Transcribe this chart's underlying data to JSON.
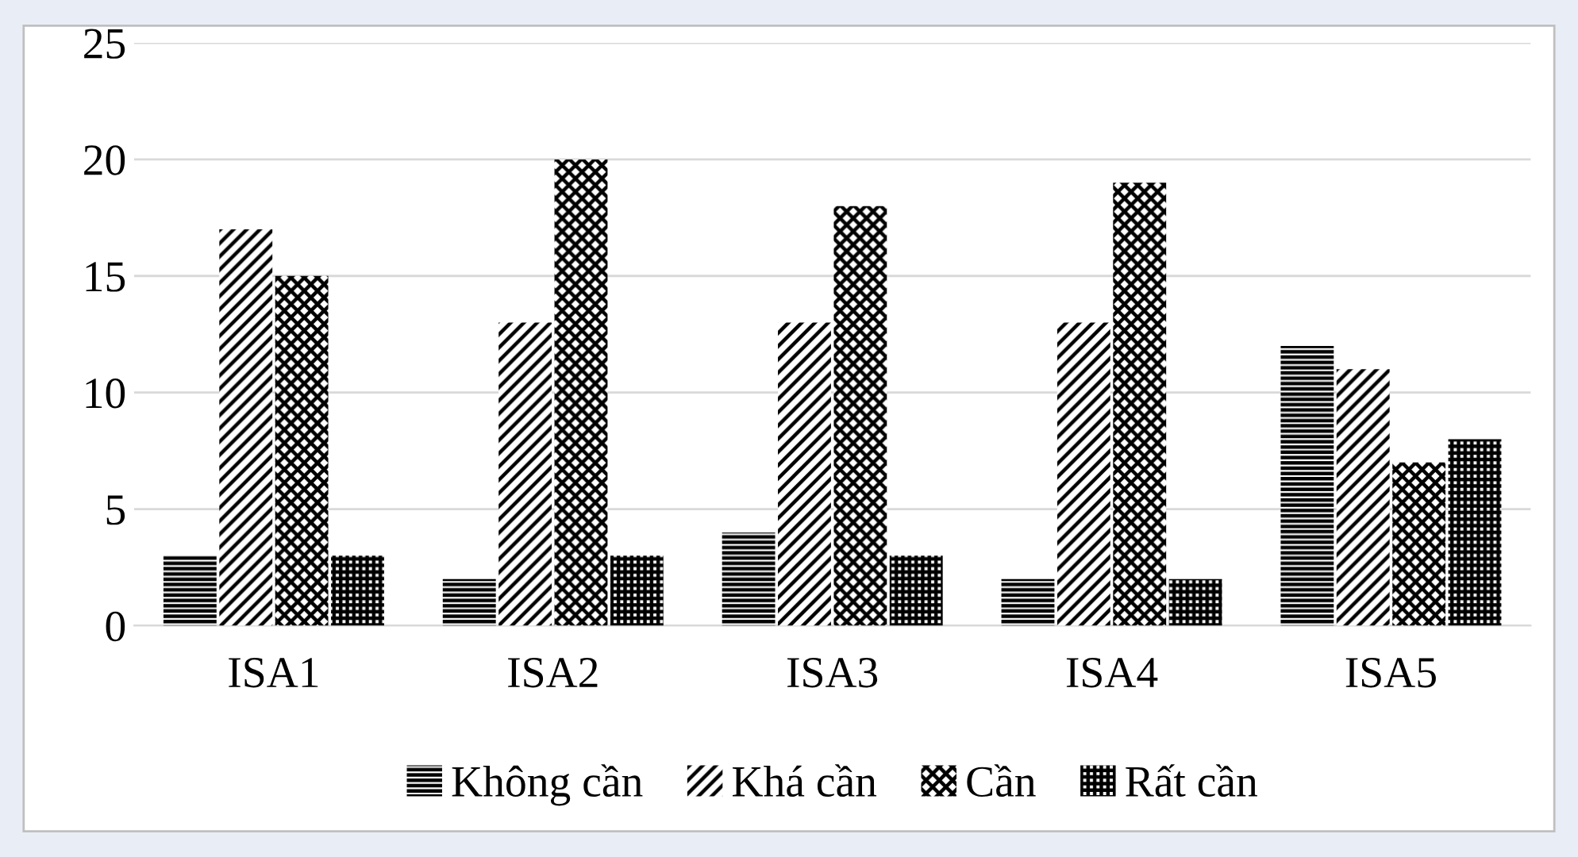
{
  "chart_data": {
    "type": "bar",
    "categories": [
      "ISA1",
      "ISA2",
      "ISA3",
      "ISA4",
      "ISA5"
    ],
    "series": [
      {
        "name": "Không cần",
        "color": "#000000",
        "values": [
          3,
          2,
          4,
          2,
          12
        ]
      },
      {
        "name": "Khá cần",
        "color": "#000000",
        "values": [
          17,
          13,
          13,
          13,
          11
        ]
      },
      {
        "name": "Cần",
        "color": "#000000",
        "values": [
          15,
          20,
          18,
          19,
          7
        ]
      },
      {
        "name": "Rất cần",
        "color": "#000000",
        "values": [
          3,
          3,
          3,
          2,
          8
        ]
      }
    ],
    "ylim": [
      0,
      25
    ],
    "yticks": [
      0,
      5,
      10,
      15,
      20,
      25
    ],
    "grid": "y",
    "legend": "bottom"
  }
}
